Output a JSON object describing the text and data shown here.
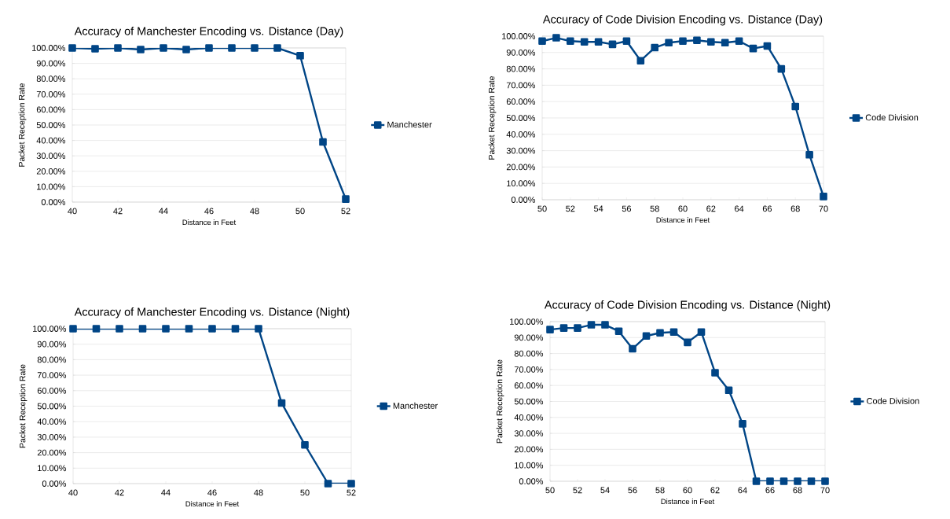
{
  "chart_data": [
    {
      "type": "line",
      "title": "Accuracy of Manchester Encoding vs. Distance (Day)",
      "xlabel": "Distance in Feet",
      "ylabel": "Packet Reception Rate",
      "x": [
        40,
        41,
        42,
        43,
        44,
        45,
        46,
        47,
        48,
        49,
        50,
        51,
        52
      ],
      "series": [
        {
          "name": "Manchester",
          "color": "#004586",
          "values": [
            100,
            99.5,
            100,
            99,
            100,
            99,
            100,
            100,
            100,
            100,
            95,
            39,
            2
          ]
        }
      ],
      "xlim": [
        40,
        52
      ],
      "xticks": [
        40,
        42,
        44,
        46,
        48,
        50,
        52
      ],
      "ylim": [
        0,
        100
      ],
      "yticks": [
        {
          "value": 0,
          "label": "0.00%"
        },
        {
          "value": 10,
          "label": "10.00%"
        },
        {
          "value": 20,
          "label": "20.00%"
        },
        {
          "value": 30,
          "label": "30.00%"
        },
        {
          "value": 40,
          "label": "40.00%"
        },
        {
          "value": 50,
          "label": "50.00%"
        },
        {
          "value": 60,
          "label": "60.00%"
        },
        {
          "value": 70,
          "label": "70.00%"
        },
        {
          "value": 80,
          "label": "80.00%"
        },
        {
          "value": 90,
          "label": "90.00%"
        },
        {
          "value": 100,
          "label": "100.00%"
        }
      ],
      "grid": "y",
      "legend": "right",
      "marker": "square"
    },
    {
      "type": "line",
      "title": "Accuracy of Code Division Encoding vs. Distance (Day)",
      "xlabel": "Distance in Feet",
      "ylabel": "Packet Reception Rate",
      "x": [
        50,
        51,
        52,
        53,
        54,
        55,
        56,
        57,
        58,
        59,
        60,
        61,
        62,
        63,
        64,
        65,
        66,
        67,
        68,
        69,
        70
      ],
      "series": [
        {
          "name": "Code Division",
          "color": "#004586",
          "values": [
            97,
            99,
            97,
            96.5,
            96.5,
            95,
            97,
            85,
            93,
            96,
            97,
            97.5,
            96.5,
            96,
            97,
            92.5,
            94,
            80,
            57,
            27.5,
            2
          ]
        }
      ],
      "xlim": [
        50,
        70
      ],
      "xticks": [
        50,
        52,
        54,
        56,
        58,
        60,
        62,
        64,
        66,
        68,
        70
      ],
      "ylim": [
        0,
        100
      ],
      "yticks": [
        {
          "value": 0,
          "label": "0.00%"
        },
        {
          "value": 10,
          "label": "10.00%"
        },
        {
          "value": 20,
          "label": "20.00%"
        },
        {
          "value": 30,
          "label": "30.00%"
        },
        {
          "value": 40,
          "label": "40.00%"
        },
        {
          "value": 50,
          "label": "50.00%"
        },
        {
          "value": 60,
          "label": "60.00%"
        },
        {
          "value": 70,
          "label": "70.00%"
        },
        {
          "value": 80,
          "label": "80.00%"
        },
        {
          "value": 90,
          "label": "90.00%"
        },
        {
          "value": 100,
          "label": "100.00%"
        }
      ],
      "grid": "y",
      "legend": "right",
      "marker": "square"
    },
    {
      "type": "line",
      "title": "Accuracy of Manchester Encoding vs. Distance (Night)",
      "xlabel": "Distance in Feet",
      "ylabel": "Packet Reception Rate",
      "x": [
        40,
        41,
        42,
        43,
        44,
        45,
        46,
        47,
        48,
        49,
        50,
        51,
        52
      ],
      "series": [
        {
          "name": "Manchester",
          "color": "#004586",
          "values": [
            100,
            100,
            100,
            100,
            100,
            100,
            100,
            100,
            100,
            52,
            25,
            0,
            0
          ]
        }
      ],
      "xlim": [
        40,
        52
      ],
      "xticks": [
        40,
        42,
        44,
        46,
        48,
        50,
        52
      ],
      "ylim": [
        0,
        100
      ],
      "yticks": [
        {
          "value": 0,
          "label": "0.00%"
        },
        {
          "value": 10,
          "label": "10.00%"
        },
        {
          "value": 20,
          "label": "20.00%"
        },
        {
          "value": 30,
          "label": "30.00%"
        },
        {
          "value": 40,
          "label": "40.00%"
        },
        {
          "value": 50,
          "label": "50.00%"
        },
        {
          "value": 60,
          "label": "60.00%"
        },
        {
          "value": 70,
          "label": "70.00%"
        },
        {
          "value": 80,
          "label": "80.00%"
        },
        {
          "value": 90,
          "label": "90.00%"
        },
        {
          "value": 100,
          "label": "100.00%"
        }
      ],
      "grid": "y",
      "legend": "right",
      "marker": "square"
    },
    {
      "type": "line",
      "title": "Accuracy of Code Division Encoding vs. Distance (Night)",
      "xlabel": "Distance in Feet",
      "ylabel": "Packet Reception Rate",
      "x": [
        50,
        51,
        52,
        53,
        54,
        55,
        56,
        57,
        58,
        59,
        60,
        61,
        62,
        63,
        64,
        65,
        66,
        67,
        68,
        69,
        70
      ],
      "series": [
        {
          "name": "Code Division",
          "color": "#004586",
          "values": [
            95,
            96,
            96,
            98,
            98,
            94,
            83,
            91,
            93,
            93.5,
            87,
            93.5,
            68,
            57,
            36,
            0,
            0,
            0,
            0,
            0,
            0
          ]
        }
      ],
      "xlim": [
        50,
        70
      ],
      "xticks": [
        50,
        52,
        54,
        56,
        58,
        60,
        62,
        64,
        66,
        68,
        70
      ],
      "ylim": [
        0,
        100
      ],
      "yticks": [
        {
          "value": 0,
          "label": "0.00%"
        },
        {
          "value": 10,
          "label": "10.00%"
        },
        {
          "value": 20,
          "label": "20.00%"
        },
        {
          "value": 30,
          "label": "30.00%"
        },
        {
          "value": 40,
          "label": "40.00%"
        },
        {
          "value": 50,
          "label": "50.00%"
        },
        {
          "value": 60,
          "label": "60.00%"
        },
        {
          "value": 70,
          "label": "70.00%"
        },
        {
          "value": 80,
          "label": "80.00%"
        },
        {
          "value": 90,
          "label": "90.00%"
        },
        {
          "value": 100,
          "label": "100.00%"
        }
      ],
      "grid": "y",
      "legend": "right",
      "marker": "square"
    }
  ]
}
